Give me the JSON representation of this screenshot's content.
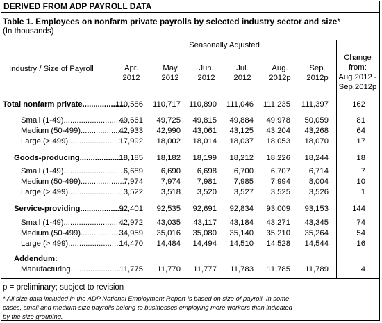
{
  "header": {
    "title": "DERIVED FROM ADP PAYROLL DATA"
  },
  "table_title": "Table 1.  Employees on nonfarm private payrolls by selected industry sector and size",
  "table_title_mark": "*",
  "units": "(In thousands)",
  "group_header": "Seasonally Adjusted",
  "row_header": "Industry / Size of Payroll",
  "columns": [
    {
      "l1": "Apr.",
      "l2": "2012"
    },
    {
      "l1": "May",
      "l2": "2012"
    },
    {
      "l1": "Jun.",
      "l2": "2012"
    },
    {
      "l1": "Jul.",
      "l2": "2012"
    },
    {
      "l1": "Aug.",
      "l2": "2012p"
    },
    {
      "l1": "Sep.",
      "l2": "2012p"
    }
  ],
  "change_header": [
    "Change",
    "from:",
    "Aug.2012 -",
    "Sep.2012p"
  ],
  "rows": [
    {
      "label": "Total nonfarm private",
      "values": [
        "110,586",
        "110,717",
        "110,890",
        "111,046",
        "111,235",
        "111,397"
      ],
      "change": "162"
    },
    {
      "label": "Small (1-49)",
      "values": [
        "49,661",
        "49,725",
        "49,815",
        "49,884",
        "49,978",
        "50,059"
      ],
      "change": "81"
    },
    {
      "label": "Medium (50-499)",
      "values": [
        "42,933",
        "42,990",
        "43,061",
        "43,125",
        "43,204",
        "43,268"
      ],
      "change": "64"
    },
    {
      "label": "Large (> 499)",
      "values": [
        "17,992",
        "18,002",
        "18,014",
        "18,037",
        "18,053",
        "18,070"
      ],
      "change": "17"
    },
    {
      "label": "Goods-producing",
      "values": [
        "18,185",
        "18,182",
        "18,199",
        "18,212",
        "18,226",
        "18,244"
      ],
      "change": "18"
    },
    {
      "label": "Small (1-49)",
      "values": [
        "6,689",
        "6,690",
        "6,698",
        "6,700",
        "6,707",
        "6,714"
      ],
      "change": "7"
    },
    {
      "label": "Medium (50-499)",
      "values": [
        "7,974",
        "7,974",
        "7,981",
        "7,985",
        "7,994",
        "8,004"
      ],
      "change": "10"
    },
    {
      "label": "Large (> 499)",
      "values": [
        "3,522",
        "3,518",
        "3,520",
        "3,527",
        "3,525",
        "3,526"
      ],
      "change": "1"
    },
    {
      "label": "Service-providing",
      "values": [
        "92,401",
        "92,535",
        "92,691",
        "92,834",
        "93,009",
        "93,153"
      ],
      "change": "144"
    },
    {
      "label": "Small (1-49)",
      "values": [
        "42,972",
        "43,035",
        "43,117",
        "43,184",
        "43,271",
        "43,345"
      ],
      "change": "74"
    },
    {
      "label": "Medium (50-499)",
      "values": [
        "34,959",
        "35,016",
        "35,080",
        "35,140",
        "35,210",
        "35,264"
      ],
      "change": "54"
    },
    {
      "label": "Large (> 499)",
      "values": [
        "14,470",
        "14,484",
        "14,494",
        "14,510",
        "14,528",
        "14,544"
      ],
      "change": "16"
    },
    {
      "label": "Addendum:",
      "values": [
        "",
        "",
        "",
        "",
        "",
        ""
      ],
      "change": ""
    },
    {
      "label": "Manufacturing",
      "values": [
        "11,775",
        "11,770",
        "11,777",
        "11,783",
        "11,785",
        "11,789"
      ],
      "change": "4"
    }
  ],
  "footnote_preliminary": "p = preliminary; subject to revision",
  "footnote_lines": [
    "* All size data included in the ADP National Employment Report is based on size of payroll.  In some",
    "  cases, small and medium-size payrolls belong to businesses employing more workers than indicated",
    "  by the size grouping."
  ]
}
